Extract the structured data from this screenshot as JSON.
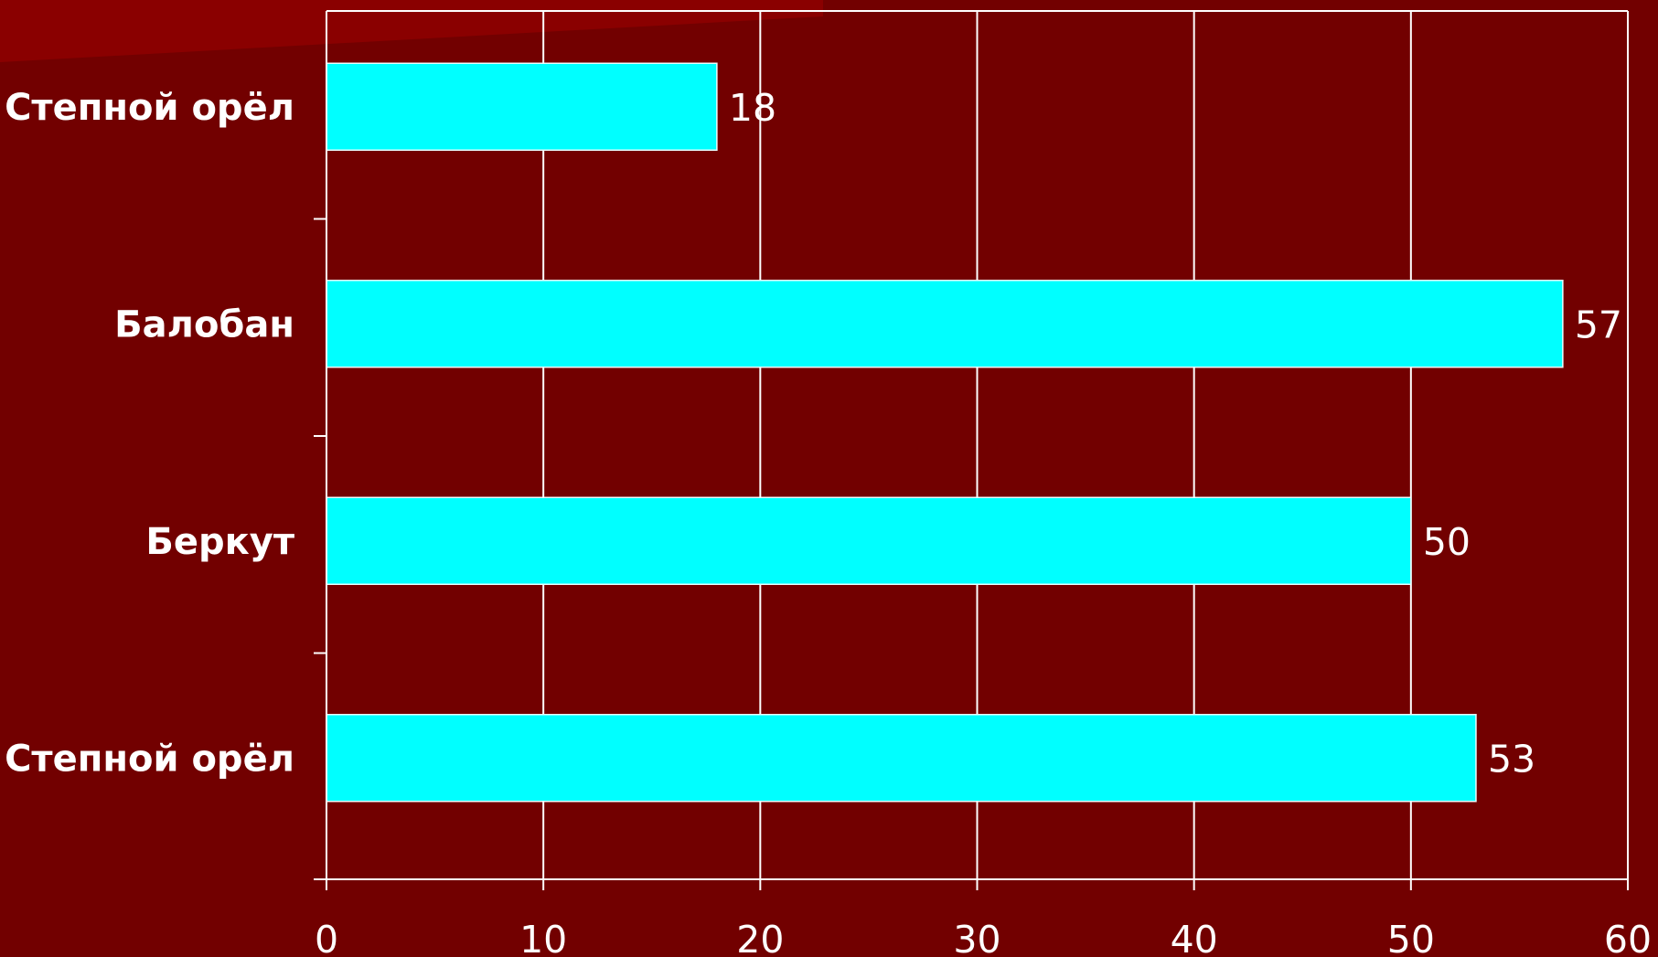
{
  "chart_data": {
    "type": "bar",
    "orientation": "horizontal",
    "categories": [
      "Степной орёл",
      "Балобан",
      "Беркут",
      "Степной орёл"
    ],
    "values": [
      18,
      57,
      50,
      53
    ],
    "xlim": [
      0,
      60
    ],
    "xticks": [
      0,
      10,
      20,
      30,
      40,
      50,
      60
    ],
    "xtick_labels": [
      "0",
      "10",
      "20",
      "30",
      "40",
      "50",
      "60"
    ],
    "data_labels": [
      "18",
      "57",
      "50",
      "53"
    ],
    "grid": "vertical",
    "legend": "none",
    "title": "",
    "xlabel": "",
    "ylabel": ""
  },
  "colors": {
    "background": "#720000",
    "bar": "#00ffff",
    "axis": "#ffffff",
    "grid": "#ffffff",
    "text": "#ffffff",
    "accent_band": "#8a0000"
  }
}
